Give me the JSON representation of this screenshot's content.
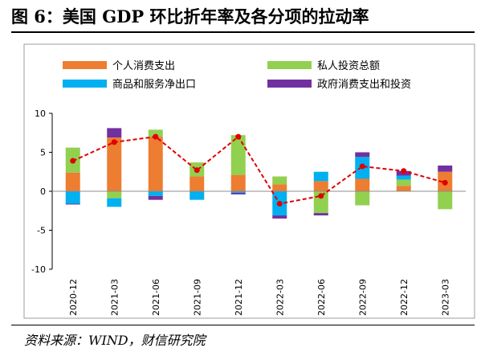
{
  "figure": {
    "title": "图 6：美国 GDP 环比折年率及各分项的拉动率",
    "source": "资料来源：WIND，财信研究院"
  },
  "chart_data": {
    "type": "bar",
    "stacked": true,
    "categories": [
      "2020-12",
      "2021-03",
      "2021-06",
      "2021-09",
      "2021-12",
      "2022-03",
      "2022-06",
      "2022-09",
      "2022-12",
      "2023-03"
    ],
    "ylim": [
      -10,
      10
    ],
    "yticks": [
      10,
      5,
      0,
      -5,
      -10
    ],
    "legend_position": "top",
    "series": [
      {
        "name": "个人消费支出",
        "color": "#ED7D31",
        "values": [
          2.4,
          6.9,
          7.0,
          1.9,
          2.1,
          0.9,
          1.3,
          1.6,
          0.7,
          2.5
        ]
      },
      {
        "name": "私人投资总额",
        "color": "#92D050",
        "values": [
          3.2,
          -0.9,
          0.9,
          1.8,
          5.1,
          1.0,
          -2.8,
          -1.8,
          0.8,
          -2.3
        ]
      },
      {
        "name": "商品和服务净出口",
        "color": "#00B0F0",
        "values": [
          -1.6,
          -1.1,
          -0.6,
          -1.1,
          -0.2,
          -3.1,
          1.2,
          2.8,
          0.5,
          0.0
        ]
      },
      {
        "name": "政府消费支出和投资",
        "color": "#7030A0",
        "values": [
          -0.1,
          1.2,
          -0.5,
          0.0,
          -0.2,
          -0.4,
          -0.3,
          0.6,
          0.6,
          0.8
        ]
      }
    ],
    "line": {
      "style": "dashed-with-markers",
      "color": "#E00000",
      "values": [
        3.9,
        6.3,
        7.0,
        2.7,
        7.0,
        -1.6,
        -0.6,
        3.2,
        2.6,
        1.1
      ]
    }
  }
}
